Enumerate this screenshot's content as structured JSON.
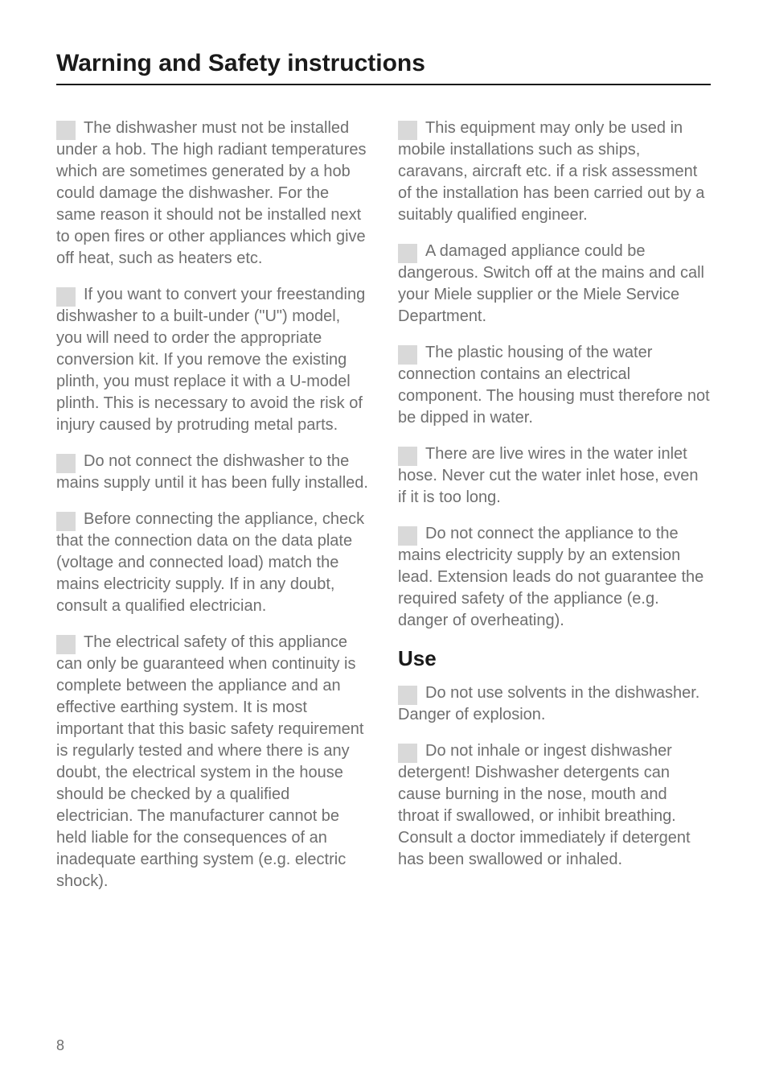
{
  "page": {
    "title": "Warning and Safety instructions",
    "number": "8"
  },
  "left": {
    "subhead": null,
    "paras": [
      "The dishwasher must not be installed under a hob. The high radiant temperatures which are sometimes generated by a hob could damage the dishwasher. For the same reason it should not be installed next to open fires or other appliances which give off heat, such as heaters etc.",
      "If you want to convert your freestanding dishwasher to a built-under (\"U\") model, you will need to order the appropriate conversion kit. If you remove the existing plinth, you must replace it with a U-model plinth. This is necessary to avoid the risk of injury caused by protruding metal parts.",
      "Do not connect the dishwasher to the mains supply until it has been fully installed.",
      "Before connecting the appliance, check that the connection data on the data plate (voltage and connected load) match the mains electricity supply. If in any doubt, consult a qualified electrician.",
      "The electrical safety of this appliance can only be guaranteed when continuity is complete between the appliance and an effective earthing system. It is most important that this basic safety requirement is regularly tested and where there is any doubt, the electrical system in the house should be checked by a qualified electrician.\nThe manufacturer cannot be held liable for the consequences of an inadequate earthing system (e.g. electric shock)."
    ]
  },
  "right": {
    "group1": [
      "This equipment may only be used in mobile installations such as ships, caravans, aircraft etc. if a risk assessment of the installation has been carried out by a suitably qualified engineer.",
      "A damaged appliance could be dangerous. Switch off at the mains and call your Miele supplier or the Miele Service Department.",
      "The plastic housing of the water connection contains an electrical component. The housing must therefore not be dipped in water.",
      "There are live wires in the water inlet hose. Never cut the water inlet hose, even if it is too long.",
      "Do not connect the appliance to the mains electricity supply by an extension lead. Extension leads do not guarantee the required safety of the appliance (e.g. danger of overheating)."
    ],
    "subhead": "Use",
    "group2": [
      "Do not use solvents in the dishwasher. Danger of explosion.",
      "Do not inhale or ingest dishwasher detergent! Dishwasher detergents can cause burning in the nose, mouth and throat if swallowed, or inhibit breathing. Consult a doctor immediately if detergent has been swallowed or inhaled."
    ]
  },
  "style": {
    "body_bg": "#ffffff",
    "text_color": "#6f6f6f",
    "heading_color": "#1a1a1a",
    "bullet_color": "#d9d9d9",
    "rule_color": "#1a1a1a",
    "title_fontsize": 30,
    "body_fontsize": 20,
    "subhead_fontsize": 26
  }
}
